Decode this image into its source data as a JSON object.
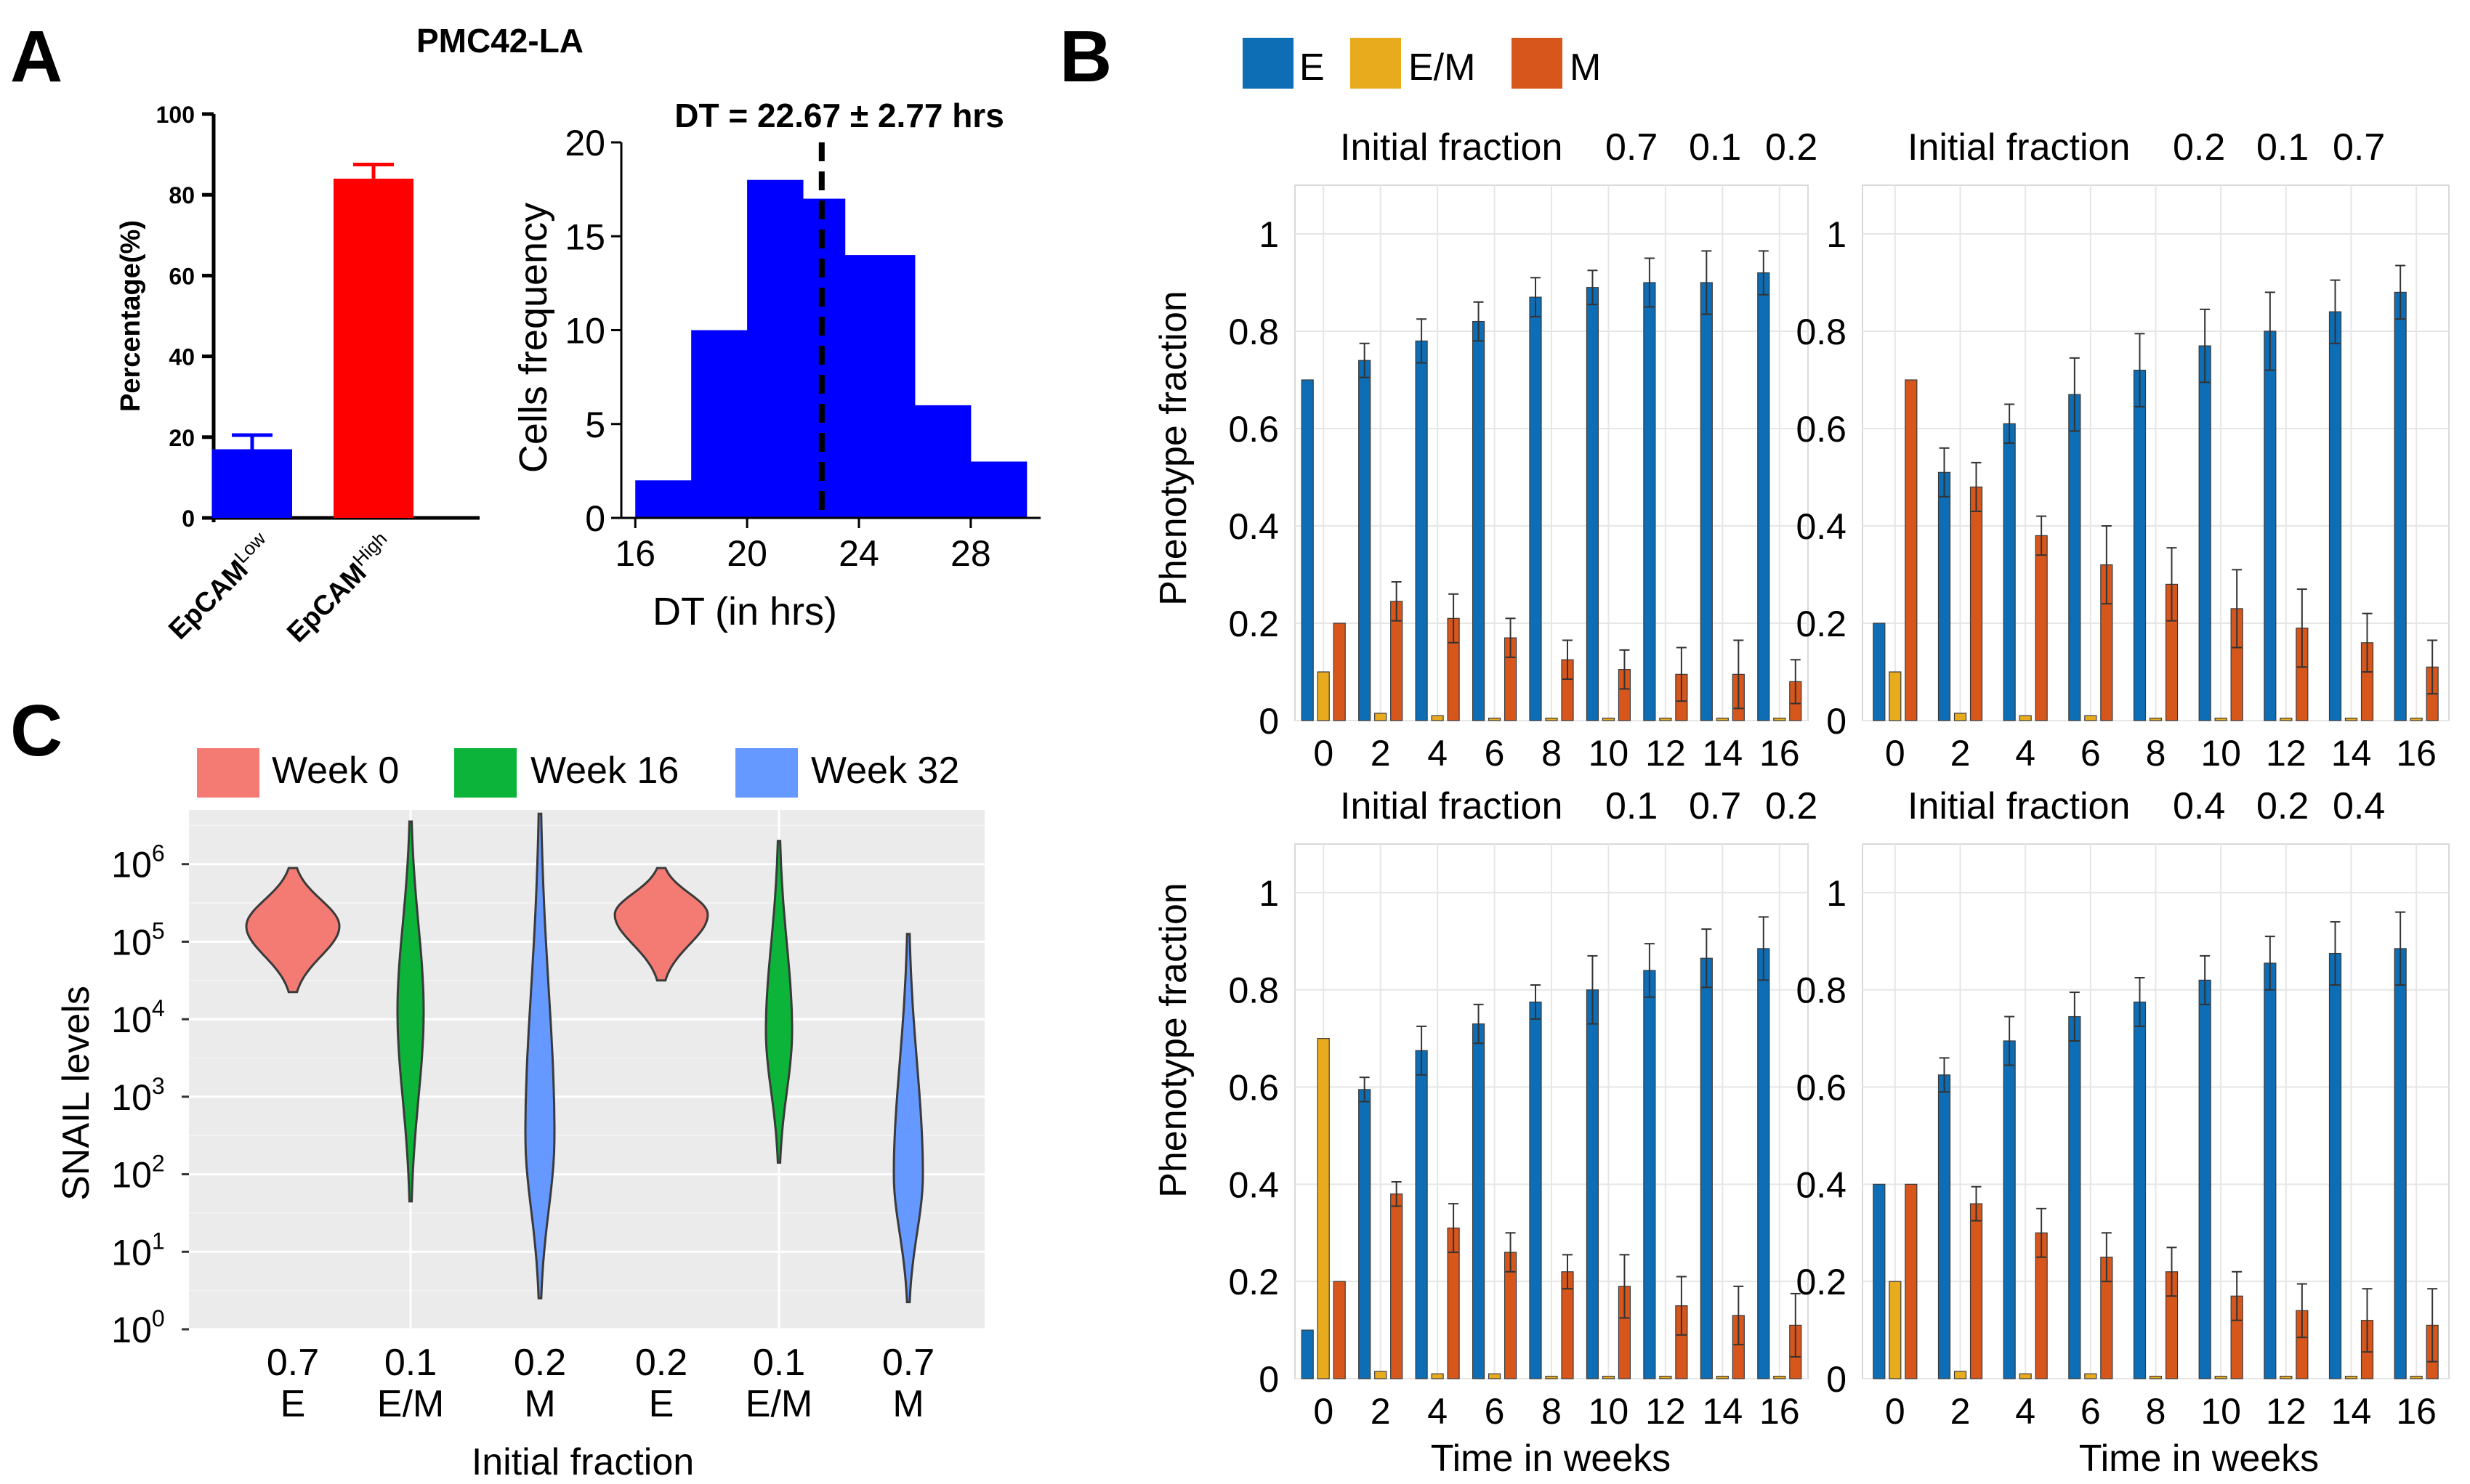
{
  "panel_labels": {
    "a": "A",
    "b": "B",
    "c": "C"
  },
  "colors": {
    "blue": "#0000ff",
    "red": "#ff0000",
    "e": "#0d6db5",
    "em": "#e8ab1d",
    "m": "#d6561c",
    "w0": "#f47b73",
    "w16": "#0cb53a",
    "w32": "#6699ff",
    "violin_bg": "#ebebeb"
  },
  "chart_data": [
    {
      "id": "a1",
      "type": "bar",
      "title": "PMC42-LA",
      "ylabel": "Percentage(%)",
      "ylim": [
        0,
        100
      ],
      "yticks": [
        0,
        20,
        40,
        60,
        80,
        100
      ],
      "categories": [
        {
          "base": "EpCAM",
          "sup": "Low",
          "value": 17,
          "err": 3.5,
          "color": "#0000ff"
        },
        {
          "base": "EpCAM",
          "sup": "High",
          "value": 84,
          "err": 3.5,
          "color": "#ff0000"
        }
      ]
    },
    {
      "id": "a2",
      "type": "bar",
      "title": "DT = 22.67 ± 2.77 hrs",
      "xlabel": "DT (in hrs)",
      "ylabel": "Cells frequency",
      "xlim": [
        15.5,
        30.5
      ],
      "ylim": [
        0,
        20
      ],
      "xticks": [
        16,
        20,
        24,
        28
      ],
      "yticks": [
        0,
        5,
        10,
        15,
        20
      ],
      "bins": [
        [
          16,
          18,
          2
        ],
        [
          18,
          20,
          10
        ],
        [
          20,
          22,
          18
        ],
        [
          22,
          23.5,
          17
        ],
        [
          23.5,
          26,
          14
        ],
        [
          26,
          28,
          6
        ],
        [
          28,
          30,
          3
        ]
      ],
      "mean_line": 22.67,
      "color": "#0000ff"
    },
    {
      "id": "b",
      "type": "bar",
      "legend": [
        "E",
        "E/M",
        "M"
      ],
      "xlabel": "Time in weeks",
      "ylabel": "Phenotype fraction",
      "x": [
        0,
        2,
        4,
        6,
        8,
        10,
        12,
        14,
        16
      ],
      "ylim": [
        0,
        1.1
      ],
      "yticks": [
        "0",
        "0.2",
        "0.4",
        "0.6",
        "0.8",
        "1"
      ],
      "subplots": [
        {
          "title_label": "Initial fraction",
          "title_values": [
            "0.7",
            "0.1",
            "0.2"
          ],
          "E": [
            0.7,
            0.74,
            0.78,
            0.82,
            0.87,
            0.89,
            0.9,
            0.9,
            0.92
          ],
          "EM": [
            0.1,
            0.015,
            0.01,
            0.005,
            0.005,
            0.005,
            0.005,
            0.005,
            0.005
          ],
          "M": [
            0.2,
            0.245,
            0.21,
            0.17,
            0.125,
            0.105,
            0.095,
            0.095,
            0.08
          ],
          "E_err": [
            0,
            0.035,
            0.045,
            0.04,
            0.04,
            0.035,
            0.05,
            0.065,
            0.045
          ],
          "M_err": [
            0,
            0.04,
            0.05,
            0.04,
            0.04,
            0.04,
            0.055,
            0.07,
            0.045
          ]
        },
        {
          "title_label": "Initial fraction",
          "title_values": [
            "0.2",
            "0.1",
            "0.7"
          ],
          "E": [
            0.2,
            0.51,
            0.61,
            0.67,
            0.72,
            0.77,
            0.8,
            0.84,
            0.88
          ],
          "EM": [
            0.1,
            0.015,
            0.01,
            0.01,
            0.005,
            0.005,
            0.005,
            0.005,
            0.005
          ],
          "M": [
            0.7,
            0.48,
            0.38,
            0.32,
            0.28,
            0.23,
            0.19,
            0.16,
            0.11
          ],
          "E_err": [
            0,
            0.05,
            0.04,
            0.075,
            0.075,
            0.075,
            0.08,
            0.065,
            0.055
          ],
          "M_err": [
            0,
            0.05,
            0.04,
            0.08,
            0.075,
            0.08,
            0.08,
            0.06,
            0.055
          ]
        },
        {
          "title_label": "Initial fraction",
          "title_values": [
            "0.1",
            "0.7",
            "0.2"
          ],
          "E": [
            0.1,
            0.595,
            0.675,
            0.73,
            0.775,
            0.8,
            0.84,
            0.865,
            0.885
          ],
          "EM": [
            0.7,
            0.015,
            0.01,
            0.01,
            0.005,
            0.005,
            0.005,
            0.005,
            0.005
          ],
          "M": [
            0.2,
            0.38,
            0.31,
            0.26,
            0.22,
            0.19,
            0.15,
            0.13,
            0.11
          ],
          "E_err": [
            0,
            0.025,
            0.05,
            0.04,
            0.035,
            0.07,
            0.055,
            0.06,
            0.065
          ],
          "M_err": [
            0,
            0.025,
            0.05,
            0.04,
            0.035,
            0.065,
            0.06,
            0.06,
            0.065
          ]
        },
        {
          "title_label": "Initial fraction",
          "title_values": [
            "0.4",
            "0.2",
            "0.4"
          ],
          "E": [
            0.4,
            0.625,
            0.695,
            0.745,
            0.775,
            0.82,
            0.855,
            0.875,
            0.885
          ],
          "EM": [
            0.2,
            0.015,
            0.01,
            0.01,
            0.005,
            0.005,
            0.005,
            0.005,
            0.005
          ],
          "M": [
            0.4,
            0.36,
            0.3,
            0.25,
            0.22,
            0.17,
            0.14,
            0.12,
            0.11
          ],
          "E_err": [
            0,
            0.035,
            0.05,
            0.05,
            0.05,
            0.05,
            0.055,
            0.065,
            0.075
          ],
          "M_err": [
            0,
            0.035,
            0.05,
            0.05,
            0.05,
            0.05,
            0.055,
            0.065,
            0.075
          ]
        }
      ]
    },
    {
      "id": "c",
      "type": "violin",
      "legend": [
        "Week 0",
        "Week 16",
        "Week 32"
      ],
      "ylabel": "SNAIL levels",
      "xlabel": "Initial fraction",
      "yscale": "log10",
      "ylim_exp": [
        0,
        6.7
      ],
      "ytick_base": "10",
      "ytick_exps": [
        "0",
        "1",
        "2",
        "3",
        "4",
        "5",
        "6"
      ],
      "groups": [
        {
          "values": [
            "0.7",
            "0.1",
            "0.2"
          ],
          "labels": [
            "E",
            "E/M",
            "M"
          ]
        },
        {
          "values": [
            "0.2",
            "0.1",
            "0.7"
          ],
          "labels": [
            "E",
            "E/M",
            "M"
          ]
        }
      ],
      "violins": [
        {
          "group": 0,
          "week": 0,
          "min_exp": 4.35,
          "max_exp": 5.95,
          "peak_exp": 5.2
        },
        {
          "group": 0,
          "week": 16,
          "min_exp": 1.65,
          "max_exp": 6.55,
          "peak_exp": 4.1
        },
        {
          "group": 0,
          "week": 32,
          "min_exp": 0.4,
          "max_exp": 6.65,
          "peak_exp": 2.5
        },
        {
          "group": 1,
          "week": 0,
          "min_exp": 4.5,
          "max_exp": 5.95,
          "peak_exp": 5.35
        },
        {
          "group": 1,
          "week": 16,
          "min_exp": 2.15,
          "max_exp": 6.3,
          "peak_exp": 3.85
        },
        {
          "group": 1,
          "week": 32,
          "min_exp": 0.35,
          "max_exp": 5.1,
          "peak_exp": 2.0
        }
      ]
    }
  ]
}
